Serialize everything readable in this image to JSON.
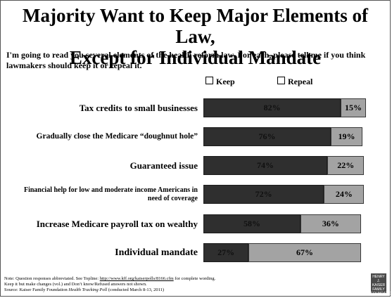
{
  "title_line1": "Majority Want to Keep Major Elements of Law,",
  "title_line2": "Except for Individual Mandate",
  "question": "I'm going to read you several elements of the health reform law. For each, please tell me if you think lawmakers should keep it or repeal it.",
  "legend": {
    "keep": "Keep",
    "repeal": "Repeal"
  },
  "colors": {
    "keep": "#2f2f2f",
    "repeal": "#a3a3a3"
  },
  "chart_data": {
    "type": "bar",
    "orientation": "horizontal",
    "stacked": true,
    "categories": [
      "Tax credits to small businesses",
      "Gradually close the Medicare “doughnut hole”",
      "Guaranteed issue",
      "Financial help for low and moderate income Americans in need of coverage",
      "Increase Medicare payroll tax on wealthy",
      "Individual mandate"
    ],
    "series": [
      {
        "name": "Keep",
        "values": [
          82,
          76,
          74,
          72,
          58,
          27
        ]
      },
      {
        "name": "Repeal",
        "values": [
          15,
          19,
          22,
          24,
          36,
          67
        ]
      }
    ],
    "value_labels": {
      "keep": [
        "82%",
        "76%",
        "74%",
        "72%",
        "58%",
        "27%"
      ],
      "repeal": [
        "15%",
        "19%",
        "22%",
        "24%",
        "36%",
        "67%"
      ]
    },
    "xlim": [
      0,
      100
    ],
    "legend_position": "top"
  },
  "notes": {
    "line1_prefix": "Note: Question responses abbreviated. See Topline: ",
    "line1_link": "http://www.kff.org/kaiserpolls/8166.cfm",
    "line1_suffix": " for complete wording.",
    "line2": "Keep it but make changes (vol.) and Don’t know/Refused answers not shown.",
    "line3_prefix": "Source: Kaiser Family Foundation ",
    "line3_italic": "Health Tracking Poll",
    "line3_suffix": " (conducted March 8-13, 2011)"
  },
  "logo": {
    "line1": "THE HENRY J.",
    "line2": "KAISER",
    "line3": "FAMILY",
    "line4": "FOUNDATION"
  }
}
